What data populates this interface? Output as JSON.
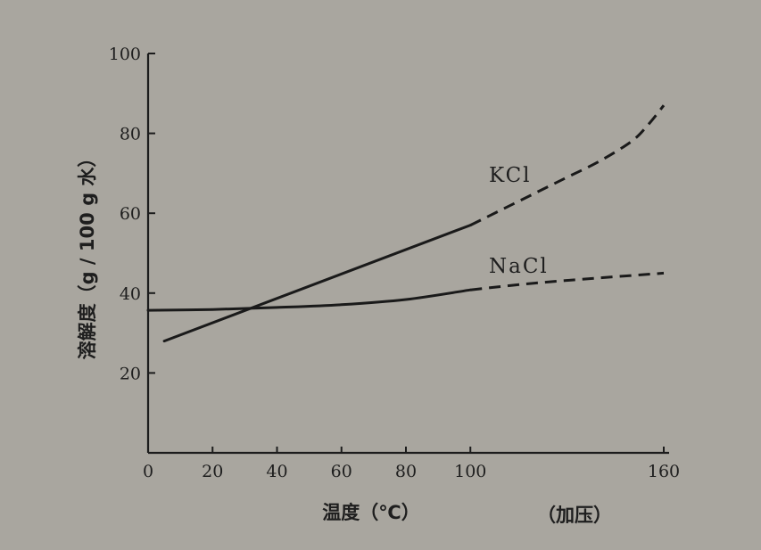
{
  "chart_data": {
    "type": "line",
    "xlabel": "温度（℃）",
    "ylabel": "溶解度（g / 100 g 水）",
    "x_note": "（加压）",
    "xlim": [
      0,
      160
    ],
    "ylim": [
      0,
      100
    ],
    "xticks": [
      0,
      20,
      40,
      60,
      80,
      100,
      160
    ],
    "yticks": [
      20,
      40,
      60,
      80,
      100
    ],
    "grid": false,
    "legend": "none",
    "series": [
      {
        "name": "KCl",
        "solid": {
          "x": [
            5,
            100
          ],
          "y": [
            28,
            57
          ]
        },
        "dashed": {
          "x": [
            100,
            110,
            120,
            130,
            140,
            150,
            155,
            160
          ],
          "y": [
            57,
            61,
            65,
            69,
            73,
            78,
            82,
            87
          ]
        }
      },
      {
        "name": "NaCl",
        "solid": {
          "x": [
            0,
            20,
            40,
            60,
            80,
            100
          ],
          "y": [
            35.7,
            35.9,
            36.4,
            37.1,
            38.4,
            40.8
          ]
        },
        "dashed": {
          "x": [
            100,
            120,
            140,
            160
          ],
          "y": [
            40.8,
            42.5,
            43.8,
            45
          ]
        }
      }
    ]
  }
}
